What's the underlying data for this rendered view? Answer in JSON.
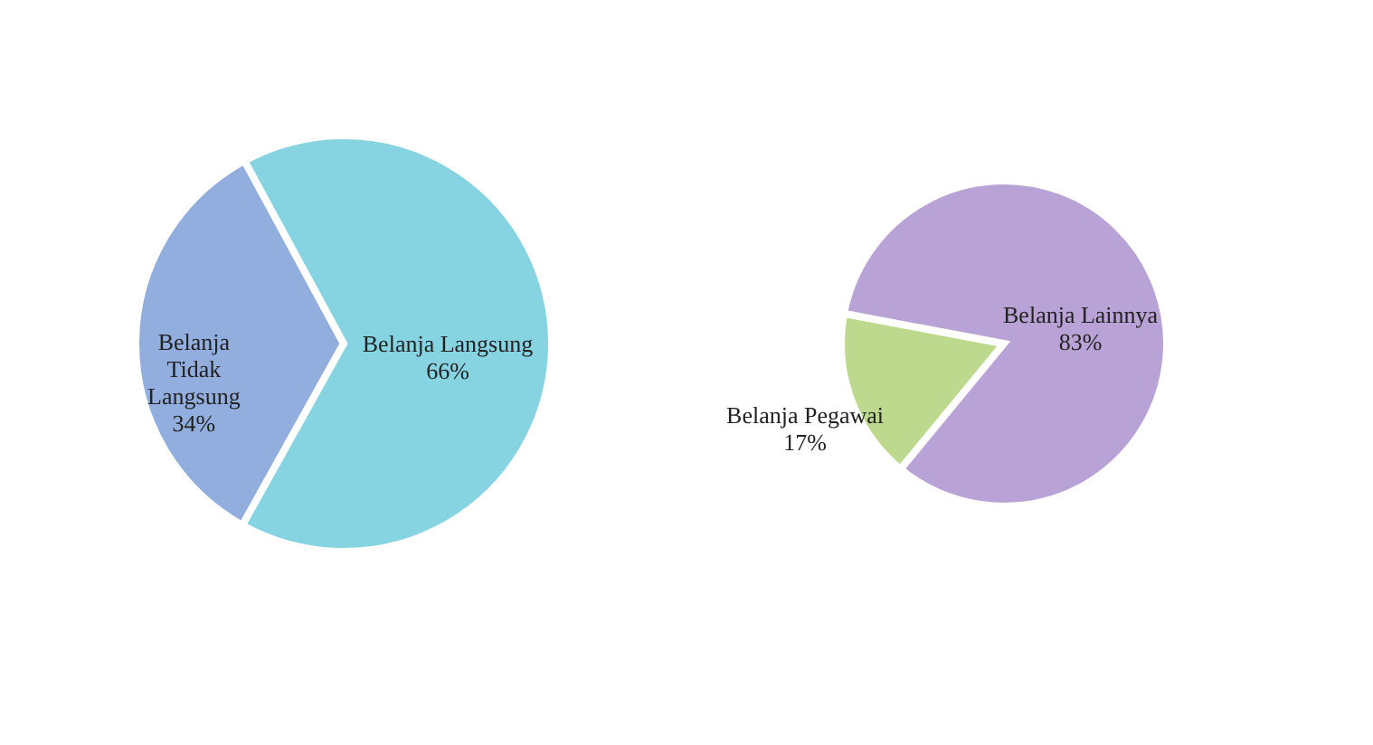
{
  "chart_data": [
    {
      "type": "pie",
      "categories": [
        "Belanja Tidak Langsung",
        "Belanja Langsung"
      ],
      "values": [
        34,
        66
      ],
      "colors": [
        "#92aede",
        "#86d3e2"
      ],
      "value_labels": [
        "34%",
        "66%"
      ],
      "legend": false
    },
    {
      "type": "pie",
      "categories": [
        "Belanja Pegawai",
        "Belanja Lainnya"
      ],
      "values": [
        17,
        83
      ],
      "colors": [
        "#bcd98e",
        "#b9a3d6"
      ],
      "value_labels": [
        "17%",
        "83%"
      ],
      "legend": false
    }
  ]
}
